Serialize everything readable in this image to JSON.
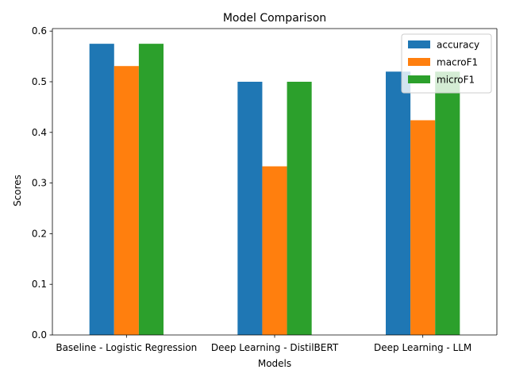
{
  "chart_data": {
    "type": "bar",
    "title": "Model Comparison",
    "xlabel": "Models",
    "ylabel": "Scores",
    "ylim": [
      0,
      0.605
    ],
    "yticks": [
      0.0,
      0.1,
      0.2,
      0.3,
      0.4,
      0.5,
      0.6
    ],
    "ytick_labels": [
      "0.0",
      "0.1",
      "0.2",
      "0.3",
      "0.4",
      "0.5",
      "0.6"
    ],
    "categories": [
      "Baseline - Logistic Regression",
      "Deep Learning - DistilBERT",
      "Deep Learning - LLM"
    ],
    "series": [
      {
        "name": "accuracy",
        "color": "#1f77b4",
        "values": [
          0.575,
          0.5,
          0.52
        ]
      },
      {
        "name": "macroF1",
        "color": "#ff7f0e",
        "values": [
          0.531,
          0.333,
          0.424
        ]
      },
      {
        "name": "microF1",
        "color": "#2ca02c",
        "values": [
          0.575,
          0.5,
          0.52
        ]
      }
    ],
    "legend_position": "upper-right",
    "grid": false
  }
}
